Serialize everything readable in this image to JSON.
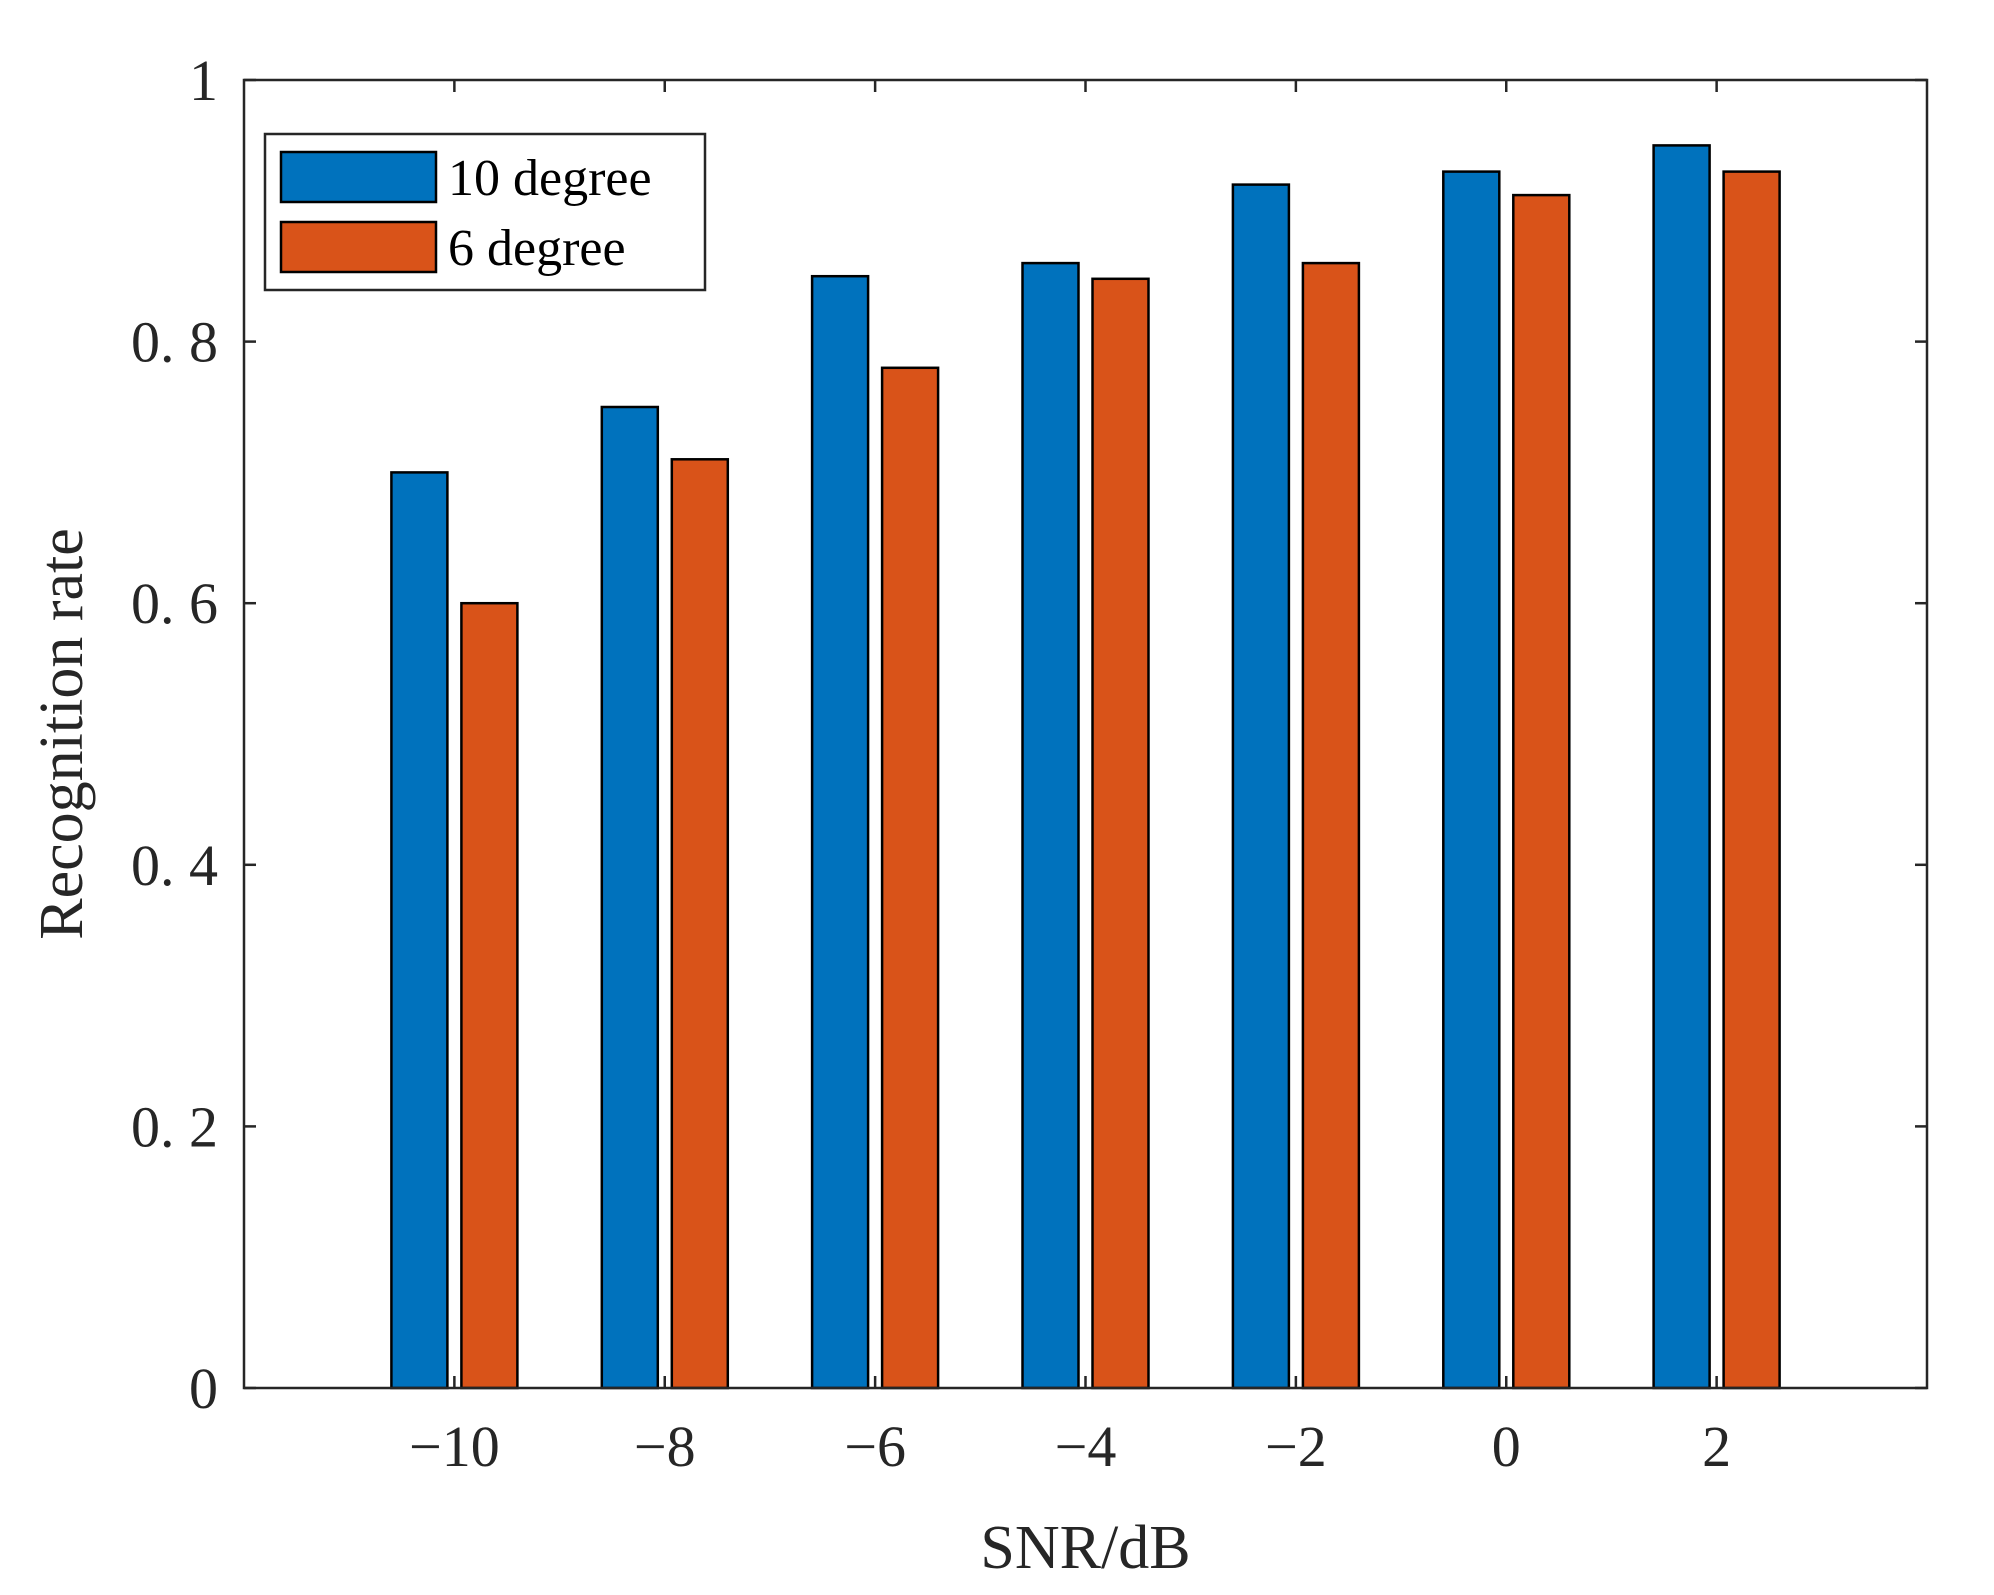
{
  "chart_data": {
    "type": "bar",
    "title": "",
    "xlabel": "SNR/dB",
    "ylabel": "Recognition rate",
    "categories": [
      "−10",
      "−8",
      "−6",
      "−4",
      "−2",
      "0",
      "2"
    ],
    "series": [
      {
        "name": "10 degree",
        "color": "#0072BD",
        "values": [
          0.7,
          0.75,
          0.85,
          0.86,
          0.92,
          0.93,
          0.95
        ]
      },
      {
        "name": "6 degree",
        "color": "#D95319",
        "values": [
          0.6,
          0.71,
          0.78,
          0.848,
          0.86,
          0.912,
          0.93
        ]
      }
    ],
    "ylim": [
      0,
      1
    ],
    "yticks": [
      0,
      0.2,
      0.4,
      0.6,
      0.8,
      1
    ],
    "ytick_labels": [
      "0",
      "0. 2",
      "0. 4",
      "0. 6",
      "0. 8",
      "1"
    ],
    "grid": false,
    "legend_position": "top-left"
  }
}
